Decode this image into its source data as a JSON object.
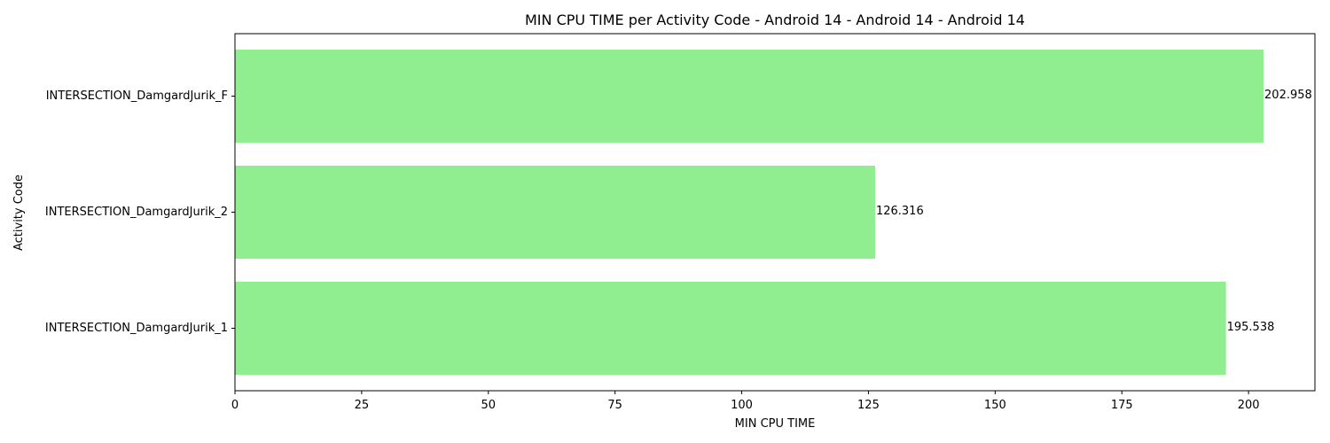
{
  "chart_data": {
    "type": "bar",
    "orientation": "horizontal",
    "title": "MIN CPU TIME per Activity Code - Android 14 - Android 14 - Android 14",
    "xlabel": "MIN CPU TIME",
    "ylabel": "Activity Code",
    "categories": [
      "INTERSECTION_DamgardJurik_F",
      "INTERSECTION_DamgardJurik_2",
      "INTERSECTION_DamgardJurik_1"
    ],
    "values": [
      202.958,
      126.316,
      195.538
    ],
    "value_labels": [
      "202.958",
      "126.316",
      "195.538"
    ],
    "xlim": [
      0,
      213.1
    ],
    "xticks": [
      0,
      25,
      50,
      75,
      100,
      125,
      150,
      175,
      200
    ],
    "xtick_labels": [
      "0",
      "25",
      "50",
      "75",
      "100",
      "125",
      "150",
      "175",
      "200"
    ],
    "grid": false,
    "legend": "none",
    "bar_color": "#90ee90"
  }
}
